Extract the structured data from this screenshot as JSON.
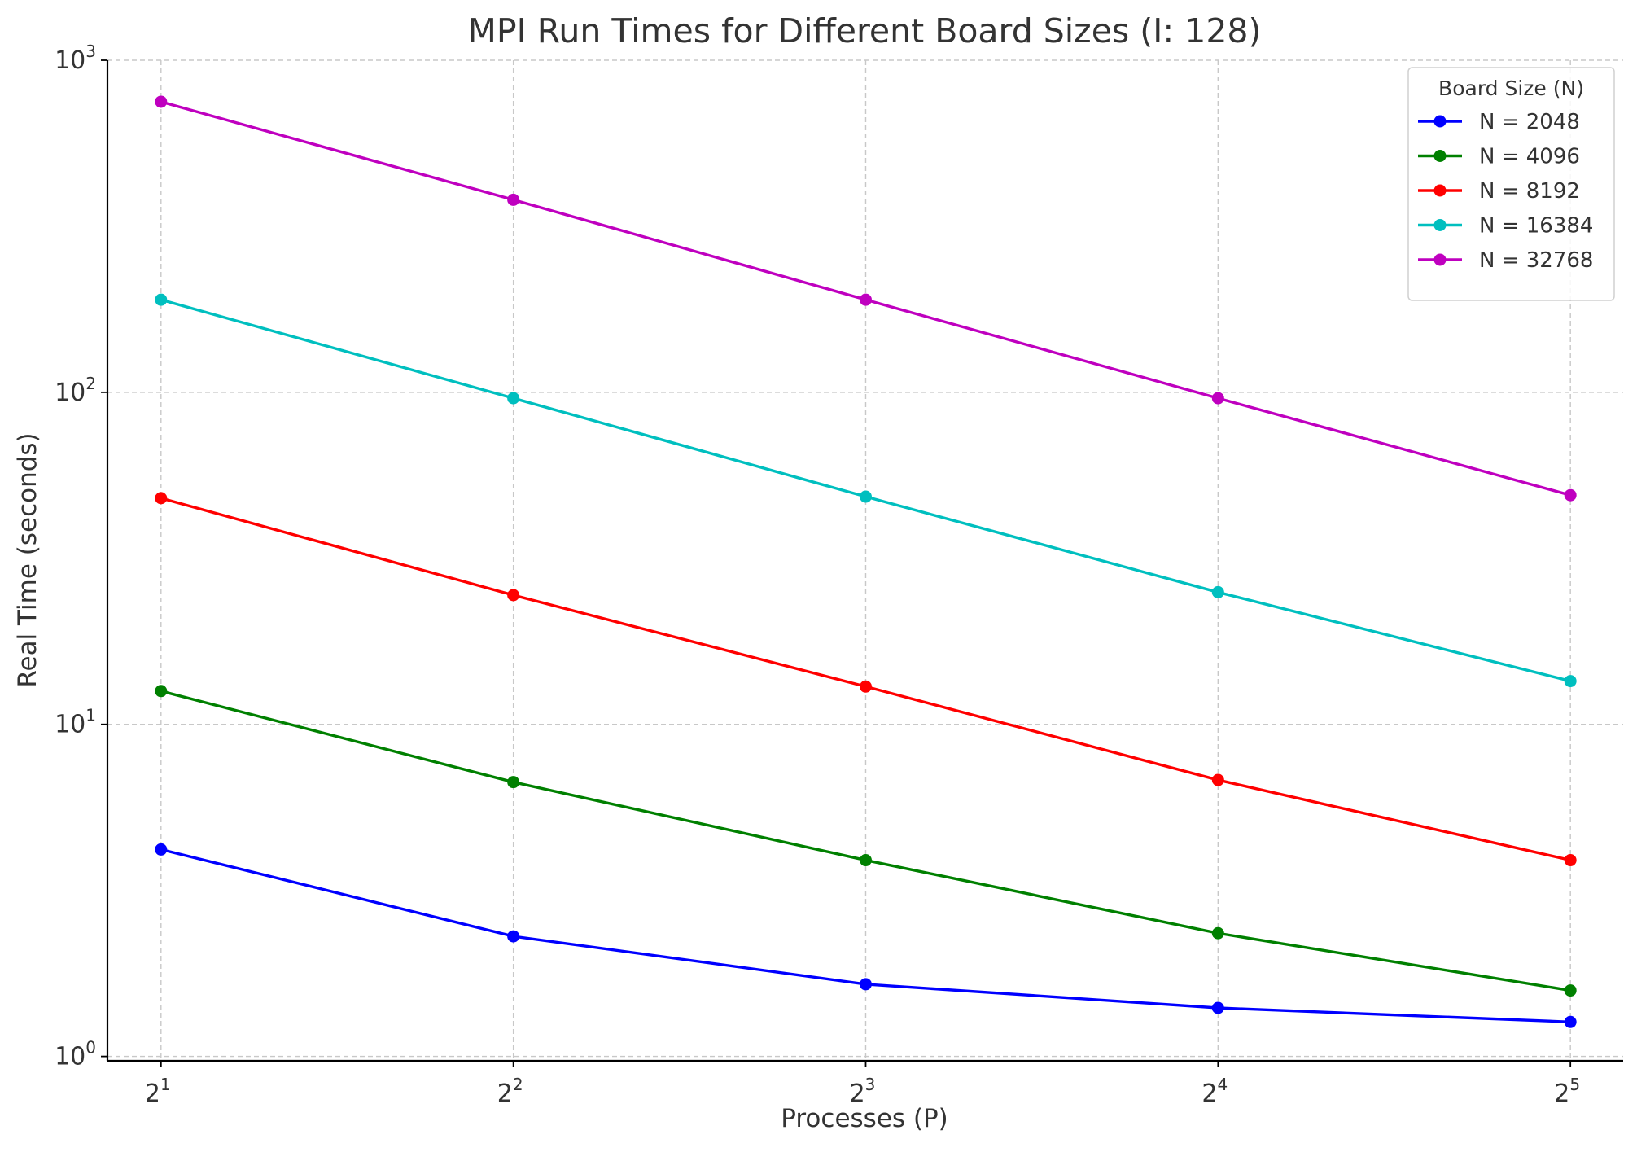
{
  "chart_data": {
    "type": "line",
    "title": "MPI Run Times for Different Board Sizes (I: 128)",
    "xlabel": "Processes (P)",
    "ylabel": "Real Time (seconds)",
    "x_scale": "log2",
    "y_scale": "log10",
    "x": [
      2,
      4,
      8,
      16,
      32
    ],
    "x_tick_labels": [
      {
        "base": "2",
        "exp": "1"
      },
      {
        "base": "2",
        "exp": "2"
      },
      {
        "base": "2",
        "exp": "3"
      },
      {
        "base": "2",
        "exp": "4"
      },
      {
        "base": "2",
        "exp": "5"
      }
    ],
    "ylim": [
      0.97,
      1000
    ],
    "y_ticks": [
      1,
      10,
      100,
      1000
    ],
    "y_tick_labels": [
      {
        "base": "10",
        "exp": "0"
      },
      {
        "base": "10",
        "exp": "1"
      },
      {
        "base": "10",
        "exp": "2"
      },
      {
        "base": "10",
        "exp": "3"
      }
    ],
    "grid": true,
    "legend_title": "Board Size (N)",
    "legend_position": "top-right",
    "series": [
      {
        "name": "N = 2048",
        "color": "#0000ff",
        "values": [
          4.2,
          2.3,
          1.65,
          1.4,
          1.27
        ]
      },
      {
        "name": "N = 4096",
        "color": "#008000",
        "values": [
          12.6,
          6.7,
          3.9,
          2.35,
          1.58
        ]
      },
      {
        "name": "N = 8192",
        "color": "#ff0000",
        "values": [
          48,
          24.5,
          13,
          6.8,
          3.9
        ]
      },
      {
        "name": "N = 16384",
        "color": "#00bfbf",
        "values": [
          190,
          96,
          48.5,
          25,
          13.5
        ]
      },
      {
        "name": "N = 32768",
        "color": "#bf00bf",
        "values": [
          750,
          380,
          190,
          96,
          49
        ]
      }
    ]
  }
}
